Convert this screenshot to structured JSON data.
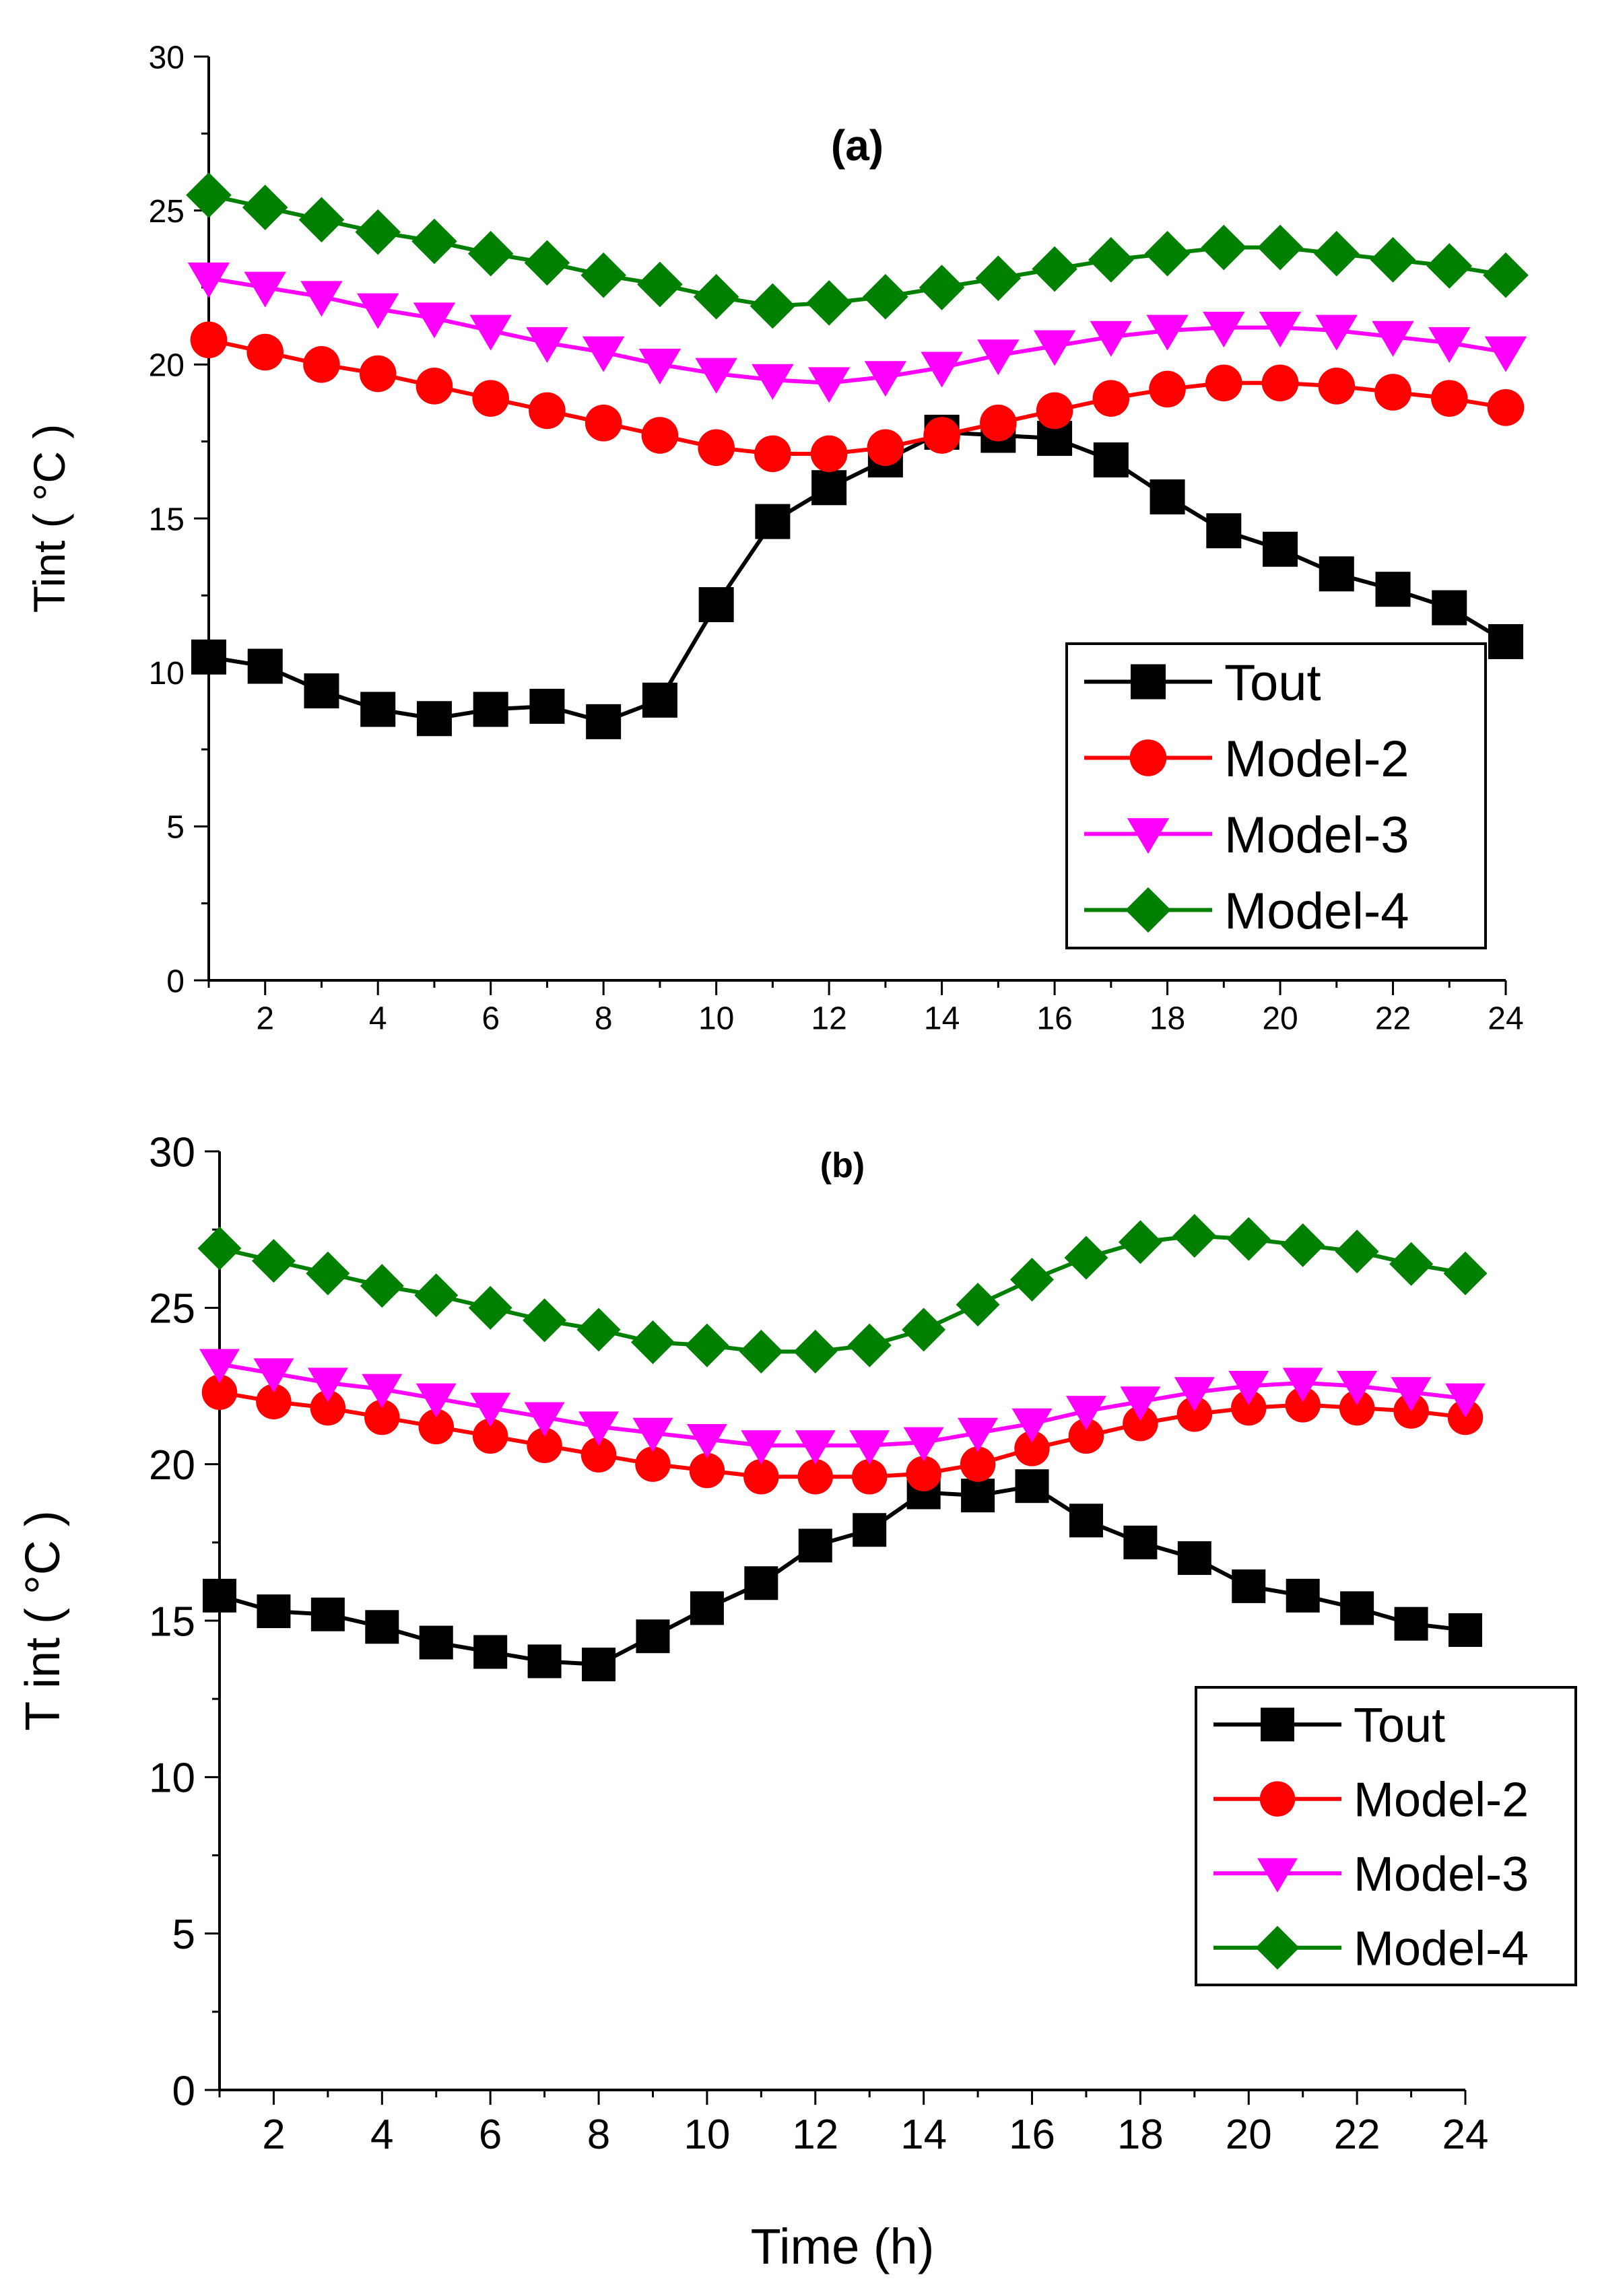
{
  "chart_data": [
    {
      "type": "line",
      "title": "(a)",
      "xlabel": "",
      "ylabel": "Tint ( °C  )",
      "xlim": [
        1,
        24
      ],
      "ylim": [
        0,
        30
      ],
      "xticks": [
        2,
        4,
        6,
        8,
        10,
        12,
        14,
        16,
        18,
        20,
        22,
        24
      ],
      "yticks": [
        0,
        5,
        10,
        15,
        20,
        25,
        30
      ],
      "grid": false,
      "legend_position": "bottom-right",
      "x": [
        1,
        2,
        3,
        4,
        5,
        6,
        7,
        8,
        9,
        10,
        11,
        12,
        13,
        14,
        15,
        16,
        17,
        18,
        19,
        20,
        21,
        22,
        23,
        24
      ],
      "series": [
        {
          "name": "Tout",
          "color": "#000000",
          "marker": "square",
          "values": [
            10.5,
            10.2,
            9.4,
            8.8,
            8.5,
            8.8,
            8.9,
            8.4,
            9.1,
            12.2,
            14.9,
            16.0,
            16.9,
            17.8,
            17.7,
            17.6,
            16.9,
            15.7,
            14.6,
            14.0,
            13.2,
            12.7,
            12.1,
            11.0
          ]
        },
        {
          "name": "Model-2",
          "color": "#ff0000",
          "marker": "circle",
          "values": [
            20.8,
            20.4,
            20.0,
            19.7,
            19.3,
            18.9,
            18.5,
            18.1,
            17.7,
            17.3,
            17.1,
            17.1,
            17.3,
            17.7,
            18.1,
            18.5,
            18.9,
            19.2,
            19.4,
            19.4,
            19.3,
            19.1,
            18.9,
            18.6
          ]
        },
        {
          "name": "Model-3",
          "color": "#ff00ff",
          "marker": "triangle-down",
          "values": [
            22.8,
            22.5,
            22.2,
            21.8,
            21.5,
            21.1,
            20.7,
            20.4,
            20.0,
            19.7,
            19.5,
            19.4,
            19.6,
            19.9,
            20.3,
            20.6,
            20.9,
            21.1,
            21.2,
            21.2,
            21.1,
            20.9,
            20.7,
            20.4
          ]
        },
        {
          "name": "Model-4",
          "color": "#008000",
          "marker": "diamond",
          "values": [
            25.5,
            25.1,
            24.7,
            24.3,
            24.0,
            23.6,
            23.3,
            22.9,
            22.6,
            22.2,
            21.9,
            22.0,
            22.2,
            22.5,
            22.8,
            23.1,
            23.4,
            23.6,
            23.8,
            23.8,
            23.6,
            23.4,
            23.2,
            22.9
          ]
        }
      ]
    },
    {
      "type": "line",
      "title": "(b)",
      "xlabel": "Time (h)",
      "ylabel": "T int ( °C  )",
      "xlim": [
        1,
        24
      ],
      "ylim": [
        0,
        30
      ],
      "xticks": [
        2,
        4,
        6,
        8,
        10,
        12,
        14,
        16,
        18,
        20,
        22,
        24
      ],
      "yticks": [
        0,
        5,
        10,
        15,
        20,
        25,
        30
      ],
      "grid": false,
      "legend_position": "bottom-right",
      "x": [
        1,
        2,
        3,
        4,
        5,
        6,
        7,
        8,
        9,
        10,
        11,
        12,
        13,
        14,
        15,
        16,
        17,
        18,
        19,
        20,
        21,
        22,
        23,
        24
      ],
      "series": [
        {
          "name": "Tout",
          "color": "#000000",
          "marker": "square",
          "values": [
            15.8,
            15.3,
            15.2,
            14.8,
            14.3,
            14.0,
            13.7,
            13.6,
            14.5,
            15.4,
            16.2,
            17.4,
            17.9,
            19.1,
            19.0,
            19.3,
            18.2,
            17.5,
            17.0,
            16.1,
            15.8,
            15.4,
            14.9,
            14.7
          ]
        },
        {
          "name": "Model-2",
          "color": "#ff0000",
          "marker": "circle",
          "values": [
            22.3,
            22.0,
            21.8,
            21.5,
            21.2,
            20.9,
            20.6,
            20.3,
            20.0,
            19.8,
            19.6,
            19.6,
            19.6,
            19.7,
            20.0,
            20.5,
            20.9,
            21.3,
            21.6,
            21.8,
            21.9,
            21.8,
            21.7,
            21.5
          ]
        },
        {
          "name": "Model-3",
          "color": "#ff00ff",
          "marker": "triangle-down",
          "values": [
            23.2,
            22.9,
            22.6,
            22.4,
            22.1,
            21.8,
            21.5,
            21.2,
            21.0,
            20.8,
            20.6,
            20.6,
            20.6,
            20.7,
            21.0,
            21.3,
            21.7,
            22.0,
            22.3,
            22.5,
            22.6,
            22.5,
            22.3,
            22.1
          ]
        },
        {
          "name": "Model-4",
          "color": "#008000",
          "marker": "diamond",
          "values": [
            26.9,
            26.5,
            26.1,
            25.7,
            25.4,
            25.0,
            24.6,
            24.3,
            23.9,
            23.8,
            23.6,
            23.6,
            23.8,
            24.3,
            25.1,
            25.9,
            26.6,
            27.1,
            27.3,
            27.2,
            27.0,
            26.8,
            26.4,
            26.1
          ]
        }
      ]
    }
  ]
}
